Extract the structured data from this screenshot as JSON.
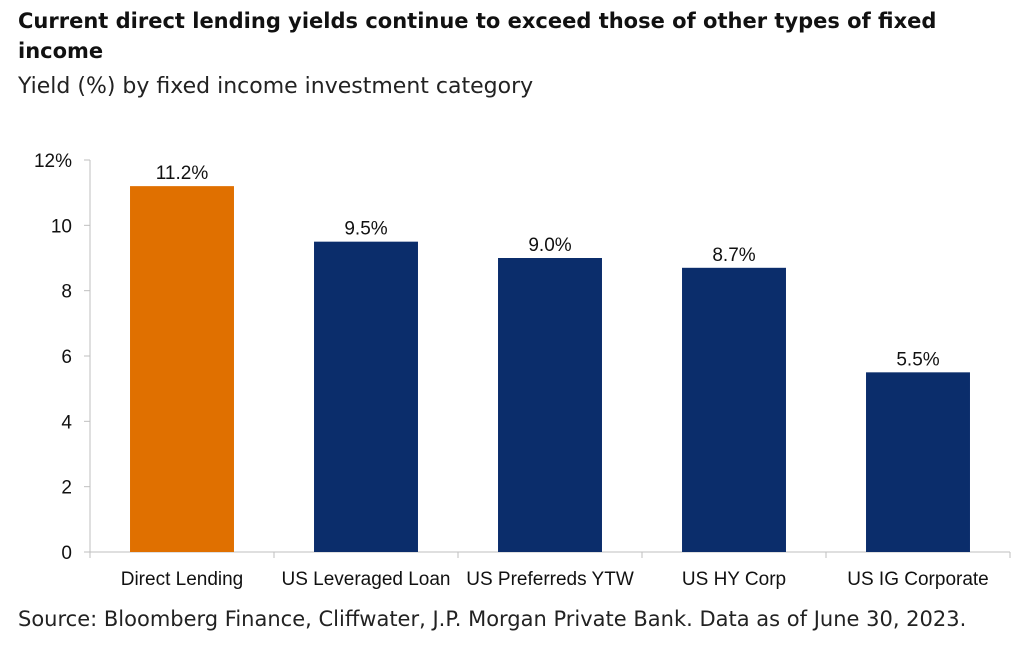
{
  "chart_data": {
    "type": "bar",
    "title": "Current direct lending yields continue to exceed those of other types of fixed income",
    "subtitle": "Yield (%) by fixed income investment category",
    "categories": [
      "Direct Lending",
      "US Leveraged Loan",
      "US Preferreds YTW",
      "US HY Corp",
      "US IG Corporate"
    ],
    "values": [
      11.2,
      9.5,
      9.0,
      8.7,
      5.5
    ],
    "data_labels": [
      "11.2%",
      "9.5%",
      "9.0%",
      "8.7%",
      "5.5%"
    ],
    "bar_colors": [
      "#E07000",
      "#0B2D6B",
      "#0B2D6B",
      "#0B2D6B",
      "#0B2D6B"
    ],
    "ylim": [
      0,
      12
    ],
    "yticks": [
      0,
      2,
      4,
      6,
      8,
      10,
      12
    ],
    "ytick_labels": [
      "0",
      "2",
      "4",
      "6",
      "8",
      "10",
      "12%"
    ],
    "xlabel": "",
    "ylabel": "",
    "grid": false,
    "legend": "none"
  },
  "source": "Source: Bloomberg Finance, Cliffwater, J.P. Morgan Private Bank. Data as of June 30, 2023."
}
